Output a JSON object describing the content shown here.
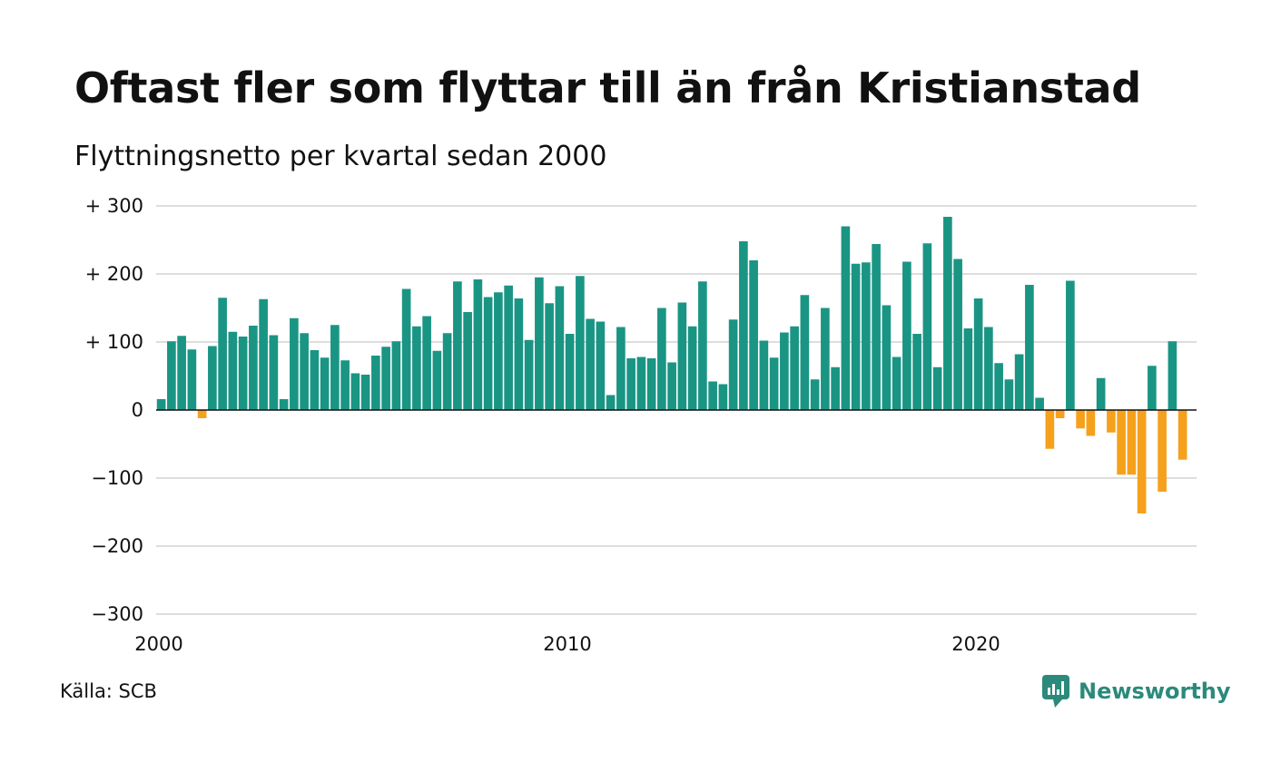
{
  "header": {
    "title": "Oftast fler som flyttar till än från Kristianstad",
    "subtitle": "Flyttningsnetto per kvartal sedan 2000"
  },
  "footer": {
    "source": "Källa: SCB",
    "brand": "Newsworthy"
  },
  "colors": {
    "positive": "#1a9584",
    "negative": "#f5a11c",
    "grid": "#dddddd",
    "brand": "#2a8a7b"
  },
  "chart_data": {
    "type": "bar",
    "title": "Oftast fler som flyttar till än från Kristianstad",
    "subtitle": "Flyttningsnetto per kvartal sedan 2000",
    "ylim": [
      -300,
      300
    ],
    "yticks": [
      300,
      200,
      100,
      0,
      -100,
      -200,
      -300
    ],
    "ytick_labels": [
      "+ 300",
      "+ 200",
      "+ 100",
      "0",
      "−100",
      "−200",
      "−300"
    ],
    "xticks": [
      {
        "label": "2000",
        "index": 0
      },
      {
        "label": "2010",
        "index": 40
      },
      {
        "label": "2020",
        "index": 80
      }
    ],
    "grid": true,
    "start": "2000-Q1",
    "values": [
      16,
      101,
      109,
      89,
      -12,
      94,
      165,
      115,
      108,
      124,
      163,
      110,
      16,
      135,
      113,
      88,
      77,
      125,
      73,
      54,
      52,
      80,
      93,
      101,
      178,
      123,
      138,
      87,
      113,
      189,
      144,
      192,
      166,
      173,
      183,
      164,
      103,
      195,
      157,
      182,
      112,
      197,
      134,
      130,
      22,
      122,
      76,
      78,
      76,
      150,
      70,
      158,
      123,
      189,
      42,
      38,
      133,
      248,
      220,
      102,
      77,
      114,
      123,
      169,
      45,
      150,
      63,
      270,
      215,
      217,
      244,
      154,
      78,
      218,
      112,
      245,
      63,
      284,
      222,
      120,
      164,
      122,
      69,
      45,
      82,
      184,
      18,
      -57,
      -12,
      190,
      -27,
      -38,
      47,
      -33,
      -95,
      -95,
      -152,
      65,
      -120,
      101,
      -73
    ]
  }
}
